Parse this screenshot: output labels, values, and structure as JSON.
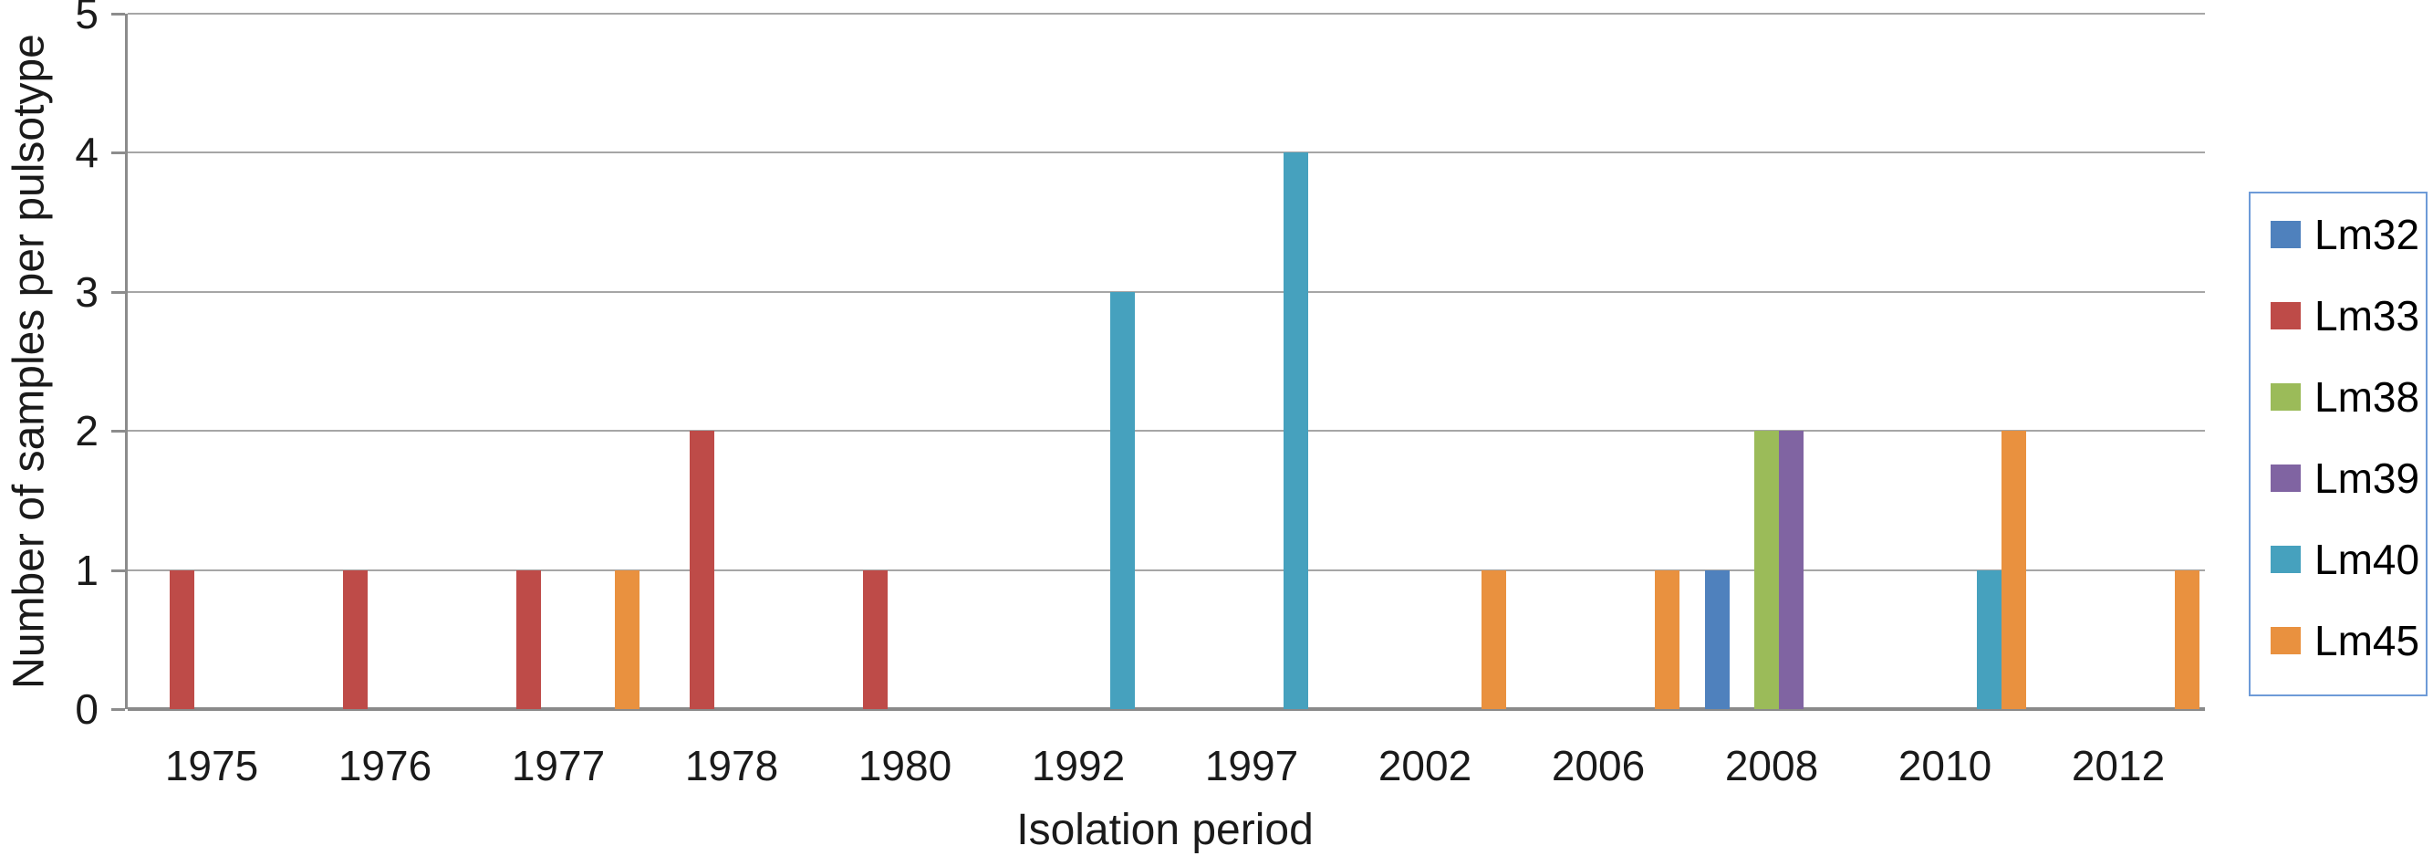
{
  "chart_data": {
    "type": "bar",
    "title": "",
    "xlabel": "Isolation period",
    "ylabel": "Number of samples per pulsotype",
    "categories": [
      "1975",
      "1976",
      "1977",
      "1978",
      "1980",
      "1992",
      "1997",
      "2002",
      "2006",
      "2008",
      "2010",
      "2012"
    ],
    "series": [
      {
        "name": "Lm32",
        "color": "#4F81BD",
        "values": [
          0,
          0,
          0,
          0,
          0,
          0,
          0,
          0,
          0,
          1,
          0,
          0
        ]
      },
      {
        "name": "Lm33",
        "color": "#BE4B48",
        "values": [
          1,
          1,
          1,
          2,
          1,
          0,
          0,
          0,
          0,
          0,
          0,
          0
        ]
      },
      {
        "name": "Lm38",
        "color": "#9BBB59",
        "values": [
          0,
          0,
          0,
          0,
          0,
          0,
          0,
          0,
          0,
          2,
          0,
          0
        ]
      },
      {
        "name": "Lm39",
        "color": "#8064A2",
        "values": [
          0,
          0,
          0,
          0,
          0,
          0,
          0,
          0,
          0,
          2,
          0,
          0
        ]
      },
      {
        "name": "Lm40",
        "color": "#46A1BE",
        "values": [
          0,
          0,
          0,
          0,
          0,
          3,
          4,
          0,
          0,
          0,
          1,
          0
        ]
      },
      {
        "name": "Lm45",
        "color": "#E9913F",
        "values": [
          0,
          0,
          1,
          0,
          0,
          0,
          0,
          1,
          1,
          0,
          2,
          1
        ]
      }
    ],
    "ylim": [
      0,
      5
    ],
    "yticks": [
      0,
      1,
      2,
      3,
      4,
      5
    ],
    "y_tick_labels": [
      "0",
      "1",
      "2",
      "3",
      "4",
      "5"
    ],
    "grid": true,
    "legend_position": "right",
    "legend_entries": [
      "Lm32",
      "Lm33",
      "Lm38",
      "Lm39",
      "Lm40",
      "Lm45"
    ]
  },
  "colors": {
    "background": "#FFFFFF",
    "gridline": "#A6A6A6",
    "axis_line": "#8C8C8C",
    "legend_border": "#6E9BD8",
    "text": "#1A1A1A"
  }
}
